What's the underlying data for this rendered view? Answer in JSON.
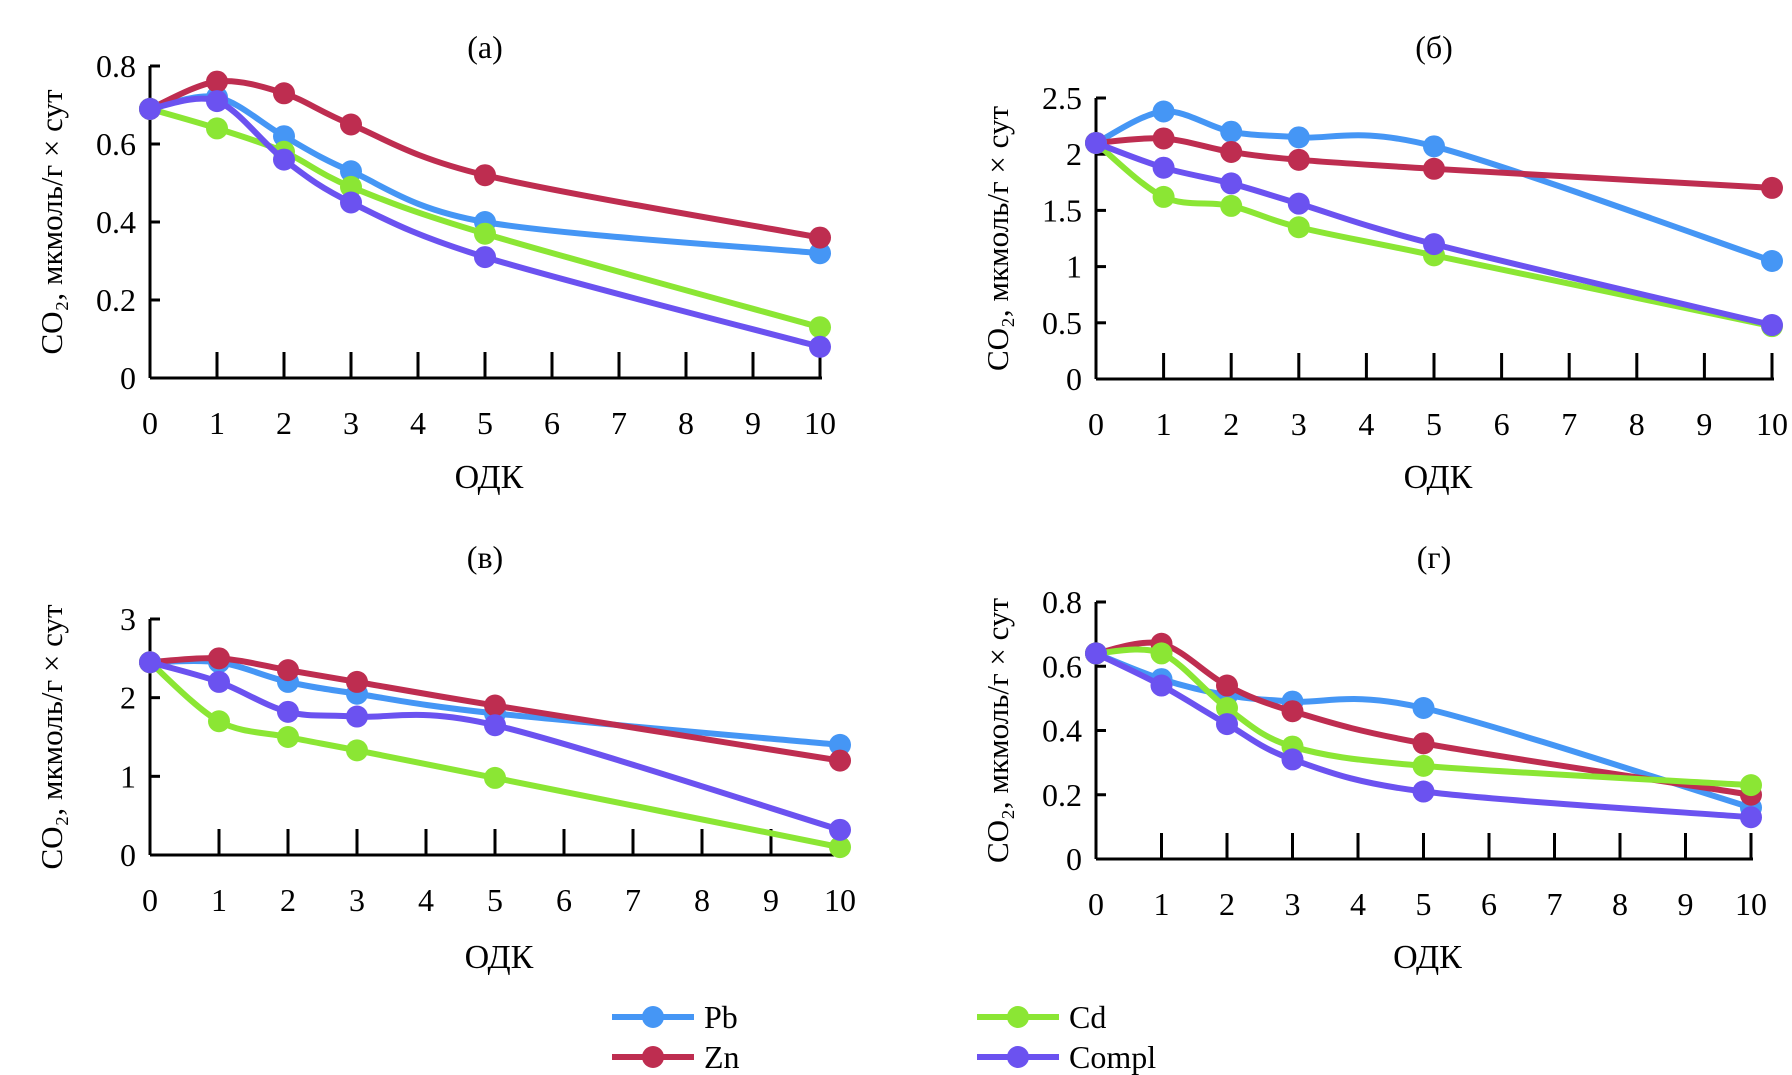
{
  "legend": [
    {
      "name": "Pb",
      "color": "#4596F5"
    },
    {
      "name": "Zn",
      "color": "#BE2D50"
    },
    {
      "name": "Cd",
      "color": "#8BE634"
    },
    {
      "name": "Compl",
      "color": "#6B52F0"
    }
  ],
  "chart_data": [
    {
      "type": "line",
      "title": "(а)",
      "xlabel": "ОДК",
      "ylabel": "CO₂, мкмоль/г × сут",
      "x": [
        0,
        1,
        2,
        3,
        5,
        10
      ],
      "xlim": [
        0,
        10
      ],
      "xticks": [
        "0",
        "1",
        "2",
        "3",
        "4",
        "5",
        "6",
        "7",
        "8",
        "9",
        "10"
      ],
      "ylim": [
        0,
        0.8
      ],
      "yticks": [
        "0",
        "0.2",
        "0.4",
        "0.6",
        "0.8"
      ],
      "grid": false,
      "series": [
        {
          "name": "Pb",
          "values": [
            0.69,
            0.72,
            0.62,
            0.53,
            0.4,
            0.32
          ]
        },
        {
          "name": "Zn",
          "values": [
            0.69,
            0.76,
            0.73,
            0.65,
            0.52,
            0.36
          ]
        },
        {
          "name": "Cd",
          "values": [
            0.69,
            0.64,
            0.58,
            0.49,
            0.37,
            0.13
          ]
        },
        {
          "name": "Compl",
          "values": [
            0.69,
            0.71,
            0.56,
            0.45,
            0.31,
            0.08
          ]
        }
      ]
    },
    {
      "type": "line",
      "title": "(б)",
      "xlabel": "ОДК",
      "ylabel": "CO₂, мкмоль/г × сут",
      "x": [
        0,
        1,
        2,
        3,
        5,
        10
      ],
      "xlim": [
        0,
        10
      ],
      "xticks": [
        "0",
        "1",
        "2",
        "3",
        "4",
        "5",
        "6",
        "7",
        "8",
        "9",
        "10"
      ],
      "ylim": [
        0,
        2.5
      ],
      "yticks": [
        "0",
        "0.5",
        "1",
        "1.5",
        "2",
        "2.5"
      ],
      "grid": false,
      "series": [
        {
          "name": "Pb",
          "values": [
            2.1,
            2.38,
            2.2,
            2.15,
            2.07,
            1.05
          ]
        },
        {
          "name": "Zn",
          "values": [
            2.1,
            2.14,
            2.02,
            1.95,
            1.87,
            1.7
          ]
        },
        {
          "name": "Cd",
          "values": [
            2.1,
            1.62,
            1.54,
            1.35,
            1.1,
            0.47
          ]
        },
        {
          "name": "Compl",
          "values": [
            2.1,
            1.88,
            1.74,
            1.56,
            1.2,
            0.48
          ]
        }
      ]
    },
    {
      "type": "line",
      "title": "(в)",
      "xlabel": "ОДК",
      "ylabel": "CO₂, мкмоль/г × сут",
      "x": [
        0,
        1,
        2,
        3,
        5,
        10
      ],
      "xlim": [
        0,
        10
      ],
      "xticks": [
        "0",
        "1",
        "2",
        "3",
        "4",
        "5",
        "6",
        "7",
        "8",
        "9",
        "10"
      ],
      "ylim": [
        0,
        3
      ],
      "yticks": [
        "0",
        "1",
        "2",
        "3"
      ],
      "grid": false,
      "series": [
        {
          "name": "Pb",
          "values": [
            2.45,
            2.45,
            2.2,
            2.05,
            1.8,
            1.4
          ]
        },
        {
          "name": "Zn",
          "values": [
            2.45,
            2.5,
            2.35,
            2.2,
            1.9,
            1.2
          ]
        },
        {
          "name": "Cd",
          "values": [
            2.45,
            1.7,
            1.5,
            1.33,
            0.98,
            0.1
          ]
        },
        {
          "name": "Compl",
          "values": [
            2.45,
            2.2,
            1.82,
            1.76,
            1.65,
            0.32
          ]
        }
      ]
    },
    {
      "type": "line",
      "title": "(г)",
      "xlabel": "ОДК",
      "ylabel": "CO₂, мкмоль/г × сут",
      "x": [
        0,
        1,
        2,
        3,
        5,
        10
      ],
      "xlim": [
        0,
        10
      ],
      "xticks": [
        "0",
        "1",
        "2",
        "3",
        "4",
        "5",
        "6",
        "7",
        "8",
        "9",
        "10"
      ],
      "ylim": [
        0,
        0.8
      ],
      "yticks": [
        "0",
        "0.2",
        "0.4",
        "0.6",
        "0.8"
      ],
      "grid": false,
      "series": [
        {
          "name": "Pb",
          "values": [
            0.64,
            0.56,
            0.51,
            0.49,
            0.47,
            0.16
          ]
        },
        {
          "name": "Zn",
          "values": [
            0.64,
            0.67,
            0.54,
            0.46,
            0.36,
            0.2
          ]
        },
        {
          "name": "Cd",
          "values": [
            0.64,
            0.64,
            0.47,
            0.35,
            0.29,
            0.23
          ]
        },
        {
          "name": "Compl",
          "values": [
            0.64,
            0.54,
            0.42,
            0.31,
            0.21,
            0.13
          ]
        }
      ]
    }
  ]
}
